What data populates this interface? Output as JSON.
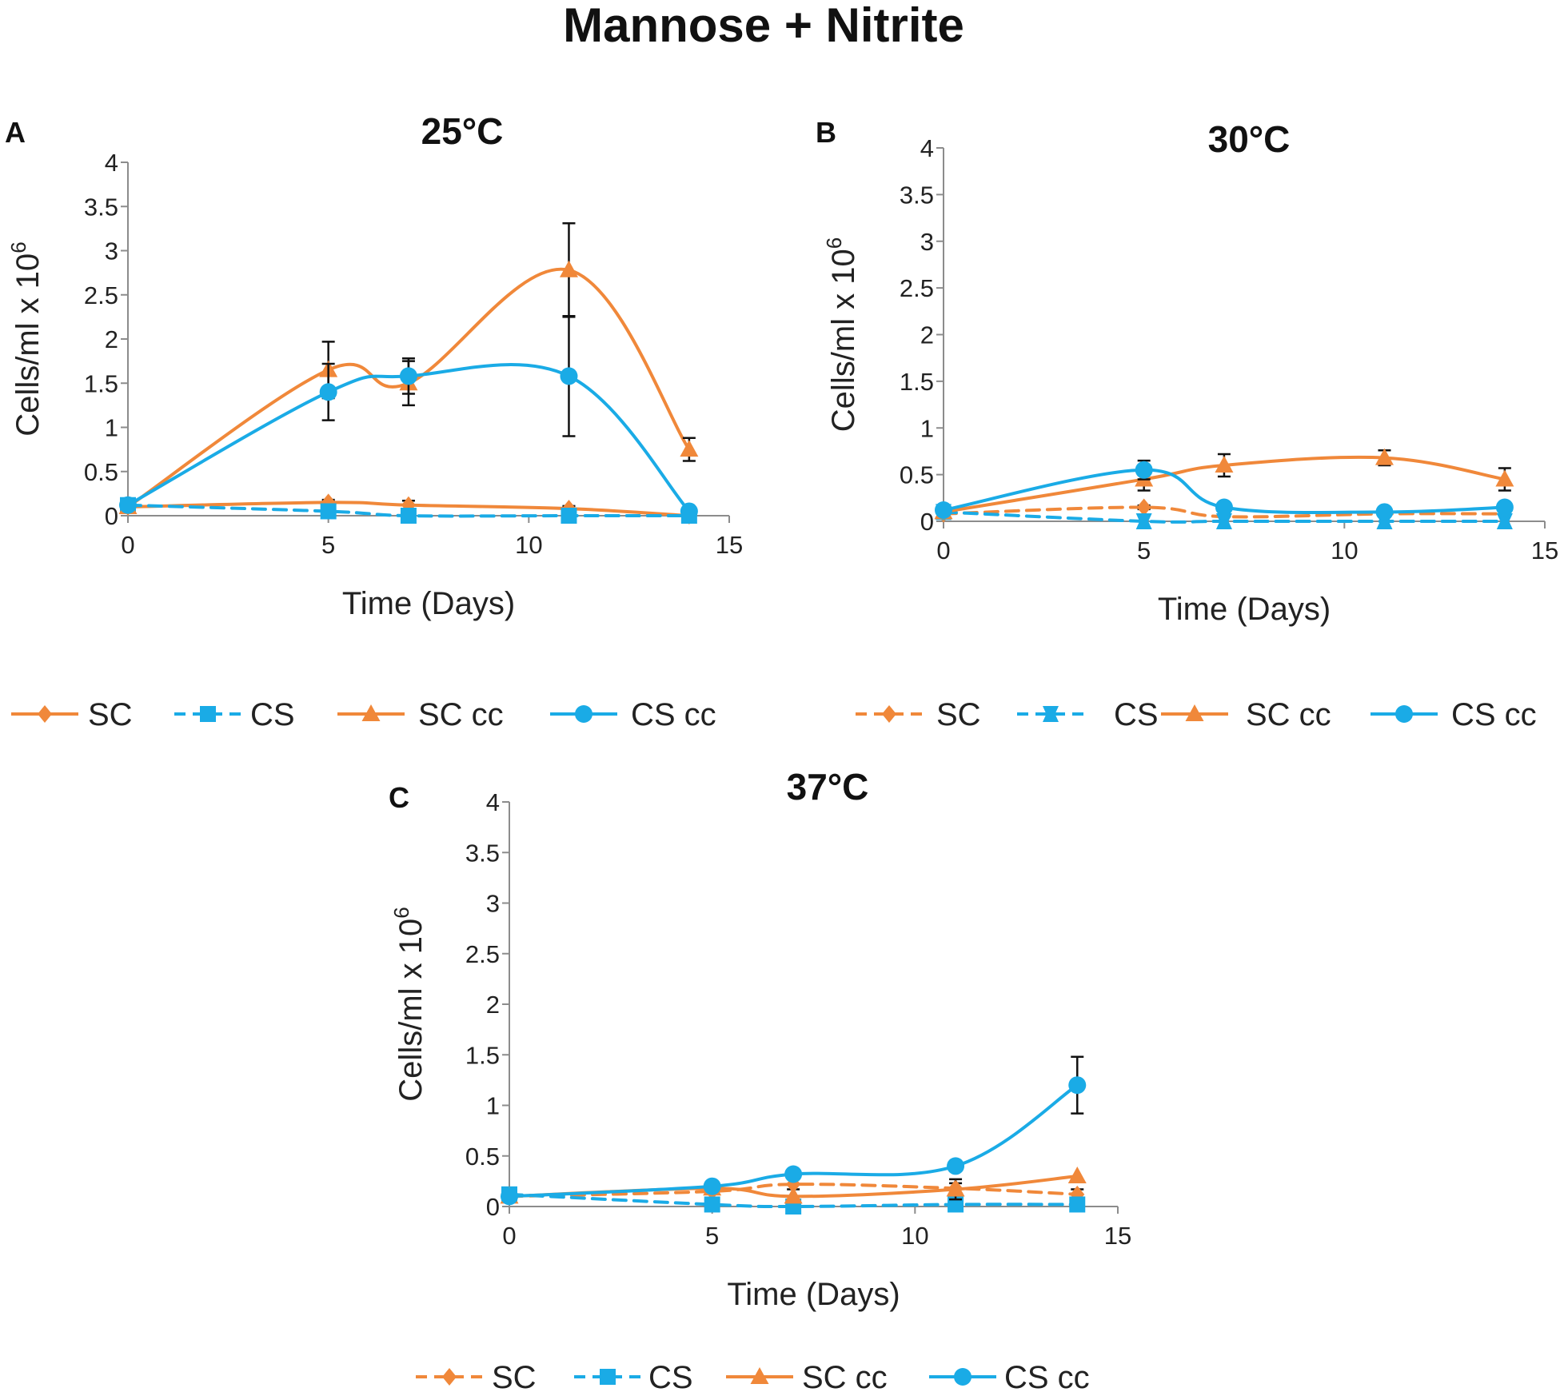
{
  "figure_title": "Mannose + Nitrite",
  "colors": {
    "orange": "#f0883a",
    "blue": "#1aabe6"
  },
  "chart_data": [
    {
      "panel": "A",
      "type": "line",
      "title": "25°C",
      "xlabel": "Time (Days)",
      "ylabel": "Cells/ml x 10",
      "ylabel_sup": "6",
      "xlim": [
        0,
        15
      ],
      "ylim": [
        0,
        4
      ],
      "xticks": [
        "0",
        "5",
        "10",
        "15"
      ],
      "yticks": [
        "0",
        "0.5",
        "1",
        "1.5",
        "2",
        "2.5",
        "3",
        "3.5",
        "4"
      ],
      "legend_position": "bottom",
      "series": [
        {
          "name": "SC",
          "color": "#f0883a",
          "dash": false,
          "marker": "diamond",
          "x": [
            0,
            5,
            7,
            11,
            14
          ],
          "values": [
            0.1,
            0.15,
            0.12,
            0.08,
            0.0
          ],
          "err": [
            0,
            0.03,
            0.05,
            0.03,
            0
          ]
        },
        {
          "name": "CS",
          "color": "#1aabe6",
          "dash": true,
          "marker": "square",
          "x": [
            0,
            5,
            7,
            11,
            14
          ],
          "values": [
            0.12,
            0.05,
            0.0,
            0.0,
            0.0
          ],
          "err": [
            0,
            0,
            0,
            0,
            0
          ]
        },
        {
          "name": "SC cc",
          "color": "#f0883a",
          "dash": false,
          "marker": "triangle",
          "x": [
            0,
            5,
            7,
            11,
            14
          ],
          "values": [
            0.1,
            1.65,
            1.5,
            2.78,
            0.75
          ],
          "err": [
            0,
            0.32,
            0.25,
            0.53,
            0.13
          ]
        },
        {
          "name": "CS cc",
          "color": "#1aabe6",
          "dash": false,
          "marker": "circle",
          "x": [
            0,
            5,
            7,
            11,
            14
          ],
          "values": [
            0.12,
            1.4,
            1.58,
            1.58,
            0.05
          ],
          "err": [
            0,
            0.32,
            0.2,
            0.68,
            0
          ]
        }
      ]
    },
    {
      "panel": "B",
      "type": "line",
      "title": "30°C",
      "xlabel": "Time (Days)",
      "ylabel": "Cells/ml x 10",
      "ylabel_sup": "6",
      "xlim": [
        0,
        15
      ],
      "ylim": [
        0,
        4
      ],
      "xticks": [
        "0",
        "5",
        "10",
        "15"
      ],
      "yticks": [
        "0",
        "0.5",
        "1",
        "1.5",
        "2",
        "2.5",
        "3",
        "3.5",
        "4"
      ],
      "legend_position": "bottom",
      "series": [
        {
          "name": "SC",
          "color": "#f0883a",
          "dash": true,
          "marker": "diamond",
          "x": [
            0,
            5,
            7,
            11,
            14
          ],
          "values": [
            0.08,
            0.15,
            0.05,
            0.08,
            0.08
          ],
          "err": [
            0,
            0.02,
            0,
            0,
            0
          ]
        },
        {
          "name": "CS",
          "color": "#1aabe6",
          "dash": true,
          "marker": "star",
          "x": [
            0,
            5,
            7,
            11,
            14
          ],
          "values": [
            0.1,
            0.0,
            0.0,
            0.0,
            0.0
          ],
          "err": [
            0,
            0,
            0,
            0,
            0
          ]
        },
        {
          "name": "SC cc",
          "color": "#f0883a",
          "dash": false,
          "marker": "triangle",
          "x": [
            0,
            5,
            7,
            11,
            14
          ],
          "values": [
            0.1,
            0.45,
            0.6,
            0.68,
            0.45
          ],
          "err": [
            0,
            0.12,
            0.12,
            0.08,
            0.12
          ]
        },
        {
          "name": "CS cc",
          "color": "#1aabe6",
          "dash": false,
          "marker": "circle",
          "x": [
            0,
            5,
            7,
            11,
            14
          ],
          "values": [
            0.12,
            0.55,
            0.15,
            0.1,
            0.15
          ],
          "err": [
            0,
            0.1,
            0.03,
            0.03,
            0.03
          ]
        }
      ]
    },
    {
      "panel": "C",
      "type": "line",
      "title": "37°C",
      "xlabel": "Time (Days)",
      "ylabel": "Cells/ml x 10",
      "ylabel_sup": "6",
      "xlim": [
        0,
        15
      ],
      "ylim": [
        0,
        4
      ],
      "xticks": [
        "0",
        "5",
        "10",
        "15"
      ],
      "yticks": [
        "0",
        "0.5",
        "1",
        "1.5",
        "2",
        "2.5",
        "3",
        "3.5",
        "4"
      ],
      "legend_position": "bottom",
      "series": [
        {
          "name": "SC",
          "color": "#f0883a",
          "dash": true,
          "marker": "diamond",
          "x": [
            0,
            5,
            7,
            11,
            14
          ],
          "values": [
            0.1,
            0.15,
            0.22,
            0.18,
            0.12
          ],
          "err": [
            0,
            0,
            0.05,
            0.05,
            0.05
          ]
        },
        {
          "name": "CS",
          "color": "#1aabe6",
          "dash": true,
          "marker": "square",
          "x": [
            0,
            5,
            7,
            11,
            14
          ],
          "values": [
            0.12,
            0.02,
            0.0,
            0.02,
            0.02
          ],
          "err": [
            0,
            0,
            0,
            0,
            0
          ]
        },
        {
          "name": "SC cc",
          "color": "#f0883a",
          "dash": false,
          "marker": "triangle",
          "x": [
            0,
            5,
            7,
            11,
            14
          ],
          "values": [
            0.1,
            0.18,
            0.1,
            0.17,
            0.3
          ],
          "err": [
            0,
            0,
            0,
            0.1,
            0
          ]
        },
        {
          "name": "CS cc",
          "color": "#1aabe6",
          "dash": false,
          "marker": "circle",
          "x": [
            0,
            5,
            7,
            11,
            14
          ],
          "values": [
            0.1,
            0.2,
            0.32,
            0.4,
            1.2
          ],
          "err": [
            0,
            0,
            0,
            0.05,
            0.28
          ]
        }
      ]
    }
  ]
}
